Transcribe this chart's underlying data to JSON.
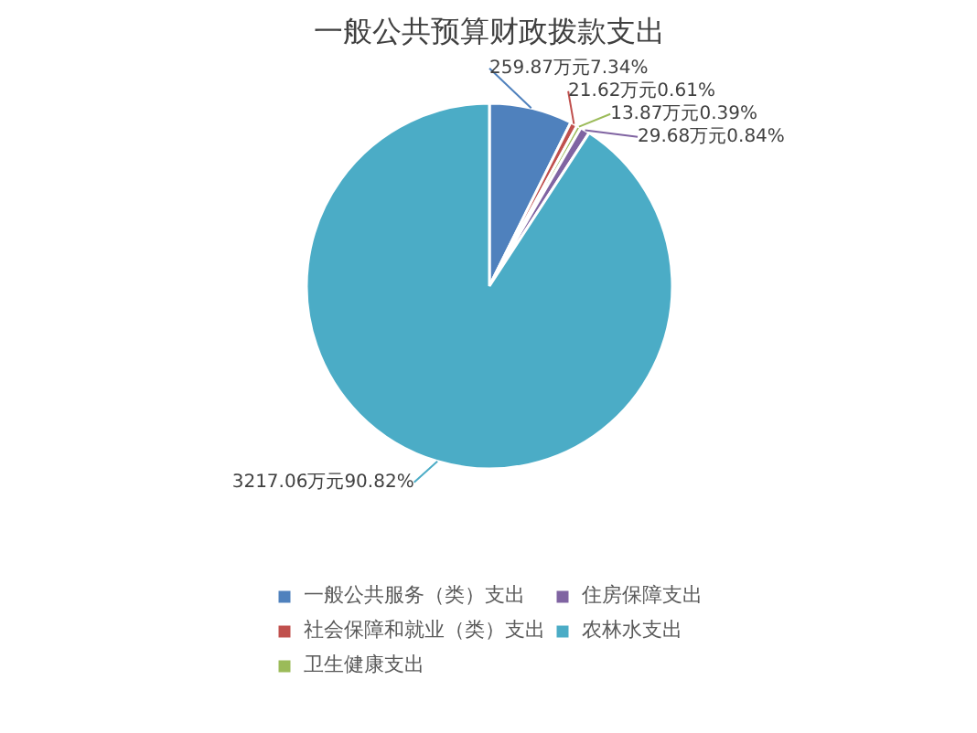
{
  "chart_data": {
    "type": "pie",
    "title": "一般公共预算财政拨款支出",
    "categories": [
      "一般公共服务（类）支出",
      "社会保障和就业（类）支出",
      "卫生健康支出",
      "住房保障支出",
      "农林水支出"
    ],
    "values": [
      259.87,
      21.62,
      13.87,
      29.68,
      3217.06
    ],
    "colors": [
      "#4f81bd",
      "#c0504d",
      "#9bbb59",
      "#8064a2",
      "#4bacc6"
    ],
    "value_labels": [
      "259.87万元7.34%",
      "21.62万元0.61%",
      "13.87万元0.39%",
      "29.68万元0.84%",
      "3217.06万元90.82%"
    ],
    "legend": "bottom"
  }
}
